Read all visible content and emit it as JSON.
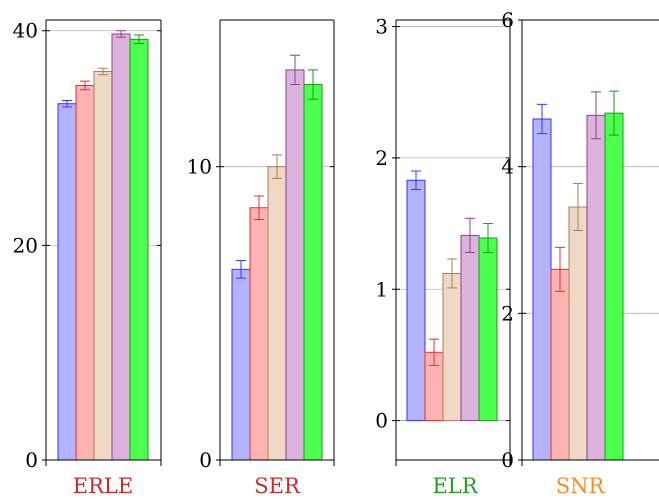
{
  "chart_data": [
    {
      "type": "bar",
      "title": "ERLE",
      "title_color": "#cc2a2a",
      "ylim": [
        0,
        41
      ],
      "yticks": [
        0,
        20,
        40
      ],
      "grid": "horizontal",
      "series": [
        {
          "color": "blue",
          "values": [
            33.2
          ],
          "error": [
            0.3
          ]
        },
        {
          "color": "red",
          "values": [
            34.9
          ],
          "error": [
            0.4
          ]
        },
        {
          "color": "brown",
          "values": [
            36.2
          ],
          "error": [
            0.3
          ]
        },
        {
          "color": "violet",
          "values": [
            39.7
          ],
          "error": [
            0.3
          ]
        },
        {
          "color": "green",
          "values": [
            39.2
          ],
          "error": [
            0.4
          ]
        }
      ]
    },
    {
      "type": "bar",
      "title": "SER",
      "title_color": "#cc2a2a",
      "ylim": [
        0,
        15
      ],
      "yticks": [
        0,
        10
      ],
      "grid": "horizontal",
      "series": [
        {
          "color": "blue",
          "values": [
            6.5
          ],
          "error": [
            0.3
          ]
        },
        {
          "color": "red",
          "values": [
            8.6
          ],
          "error": [
            0.4
          ]
        },
        {
          "color": "brown",
          "values": [
            10.0
          ],
          "error": [
            0.4
          ]
        },
        {
          "color": "violet",
          "values": [
            13.3
          ],
          "error": [
            0.5
          ]
        },
        {
          "color": "green",
          "values": [
            12.8
          ],
          "error": [
            0.5
          ]
        }
      ]
    },
    {
      "type": "bar",
      "title": "ELR",
      "title_color": "#22a022",
      "ylim": [
        -0.3,
        3.05
      ],
      "yticks": [
        0,
        1,
        2,
        3
      ],
      "grid": "horizontal",
      "series": [
        {
          "color": "blue",
          "values": [
            1.83
          ],
          "error": [
            0.07
          ]
        },
        {
          "color": "red",
          "values": [
            0.52
          ],
          "error": [
            0.1
          ]
        },
        {
          "color": "brown",
          "values": [
            1.12
          ],
          "error": [
            0.11
          ]
        },
        {
          "color": "violet",
          "values": [
            1.41
          ],
          "error": [
            0.13
          ]
        },
        {
          "color": "green",
          "values": [
            1.39
          ],
          "error": [
            0.11
          ]
        }
      ]
    },
    {
      "type": "bar",
      "title": "SNR",
      "title_color": "#ff8c1a",
      "ylim": [
        0,
        6
      ],
      "yticks": [
        0,
        2,
        4,
        6
      ],
      "grid": "horizontal",
      "series": [
        {
          "color": "blue",
          "values": [
            4.65
          ],
          "error": [
            0.2
          ]
        },
        {
          "color": "red",
          "values": [
            2.6
          ],
          "error": [
            0.3
          ]
        },
        {
          "color": "brown",
          "values": [
            3.45
          ],
          "error": [
            0.32
          ]
        },
        {
          "color": "violet",
          "values": [
            4.7
          ],
          "error": [
            0.32
          ]
        },
        {
          "color": "green",
          "values": [
            4.73
          ],
          "error": [
            0.3
          ]
        }
      ]
    }
  ]
}
